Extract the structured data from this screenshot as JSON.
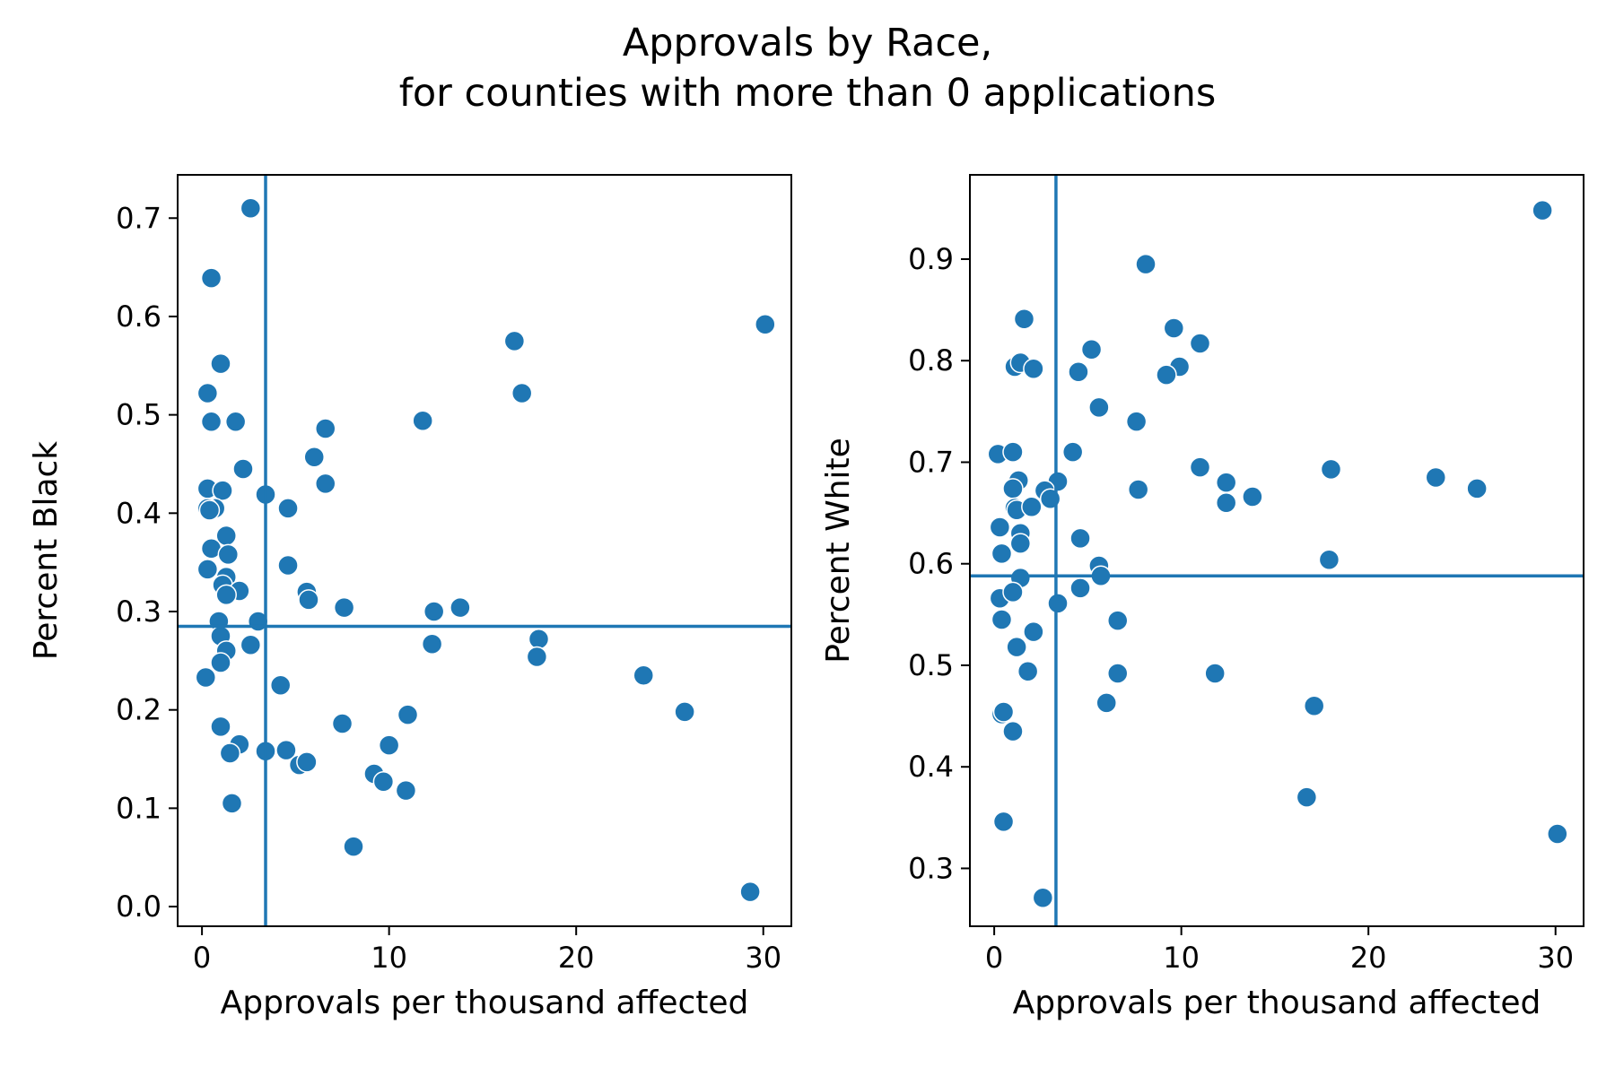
{
  "title_line1": "Approvals by Race,",
  "title_line2": "for counties with more than 0 applications",
  "colors": {
    "point": "#1f77b4",
    "refline": "#1f77b4",
    "frame": "#000000"
  },
  "chart_data": [
    {
      "type": "scatter",
      "xlabel": "Approvals per thousand affected",
      "ylabel": "Percent Black",
      "xlim": [
        -1.3,
        31.5
      ],
      "ylim": [
        -0.02,
        0.744
      ],
      "xticks": [
        0,
        10,
        20,
        30
      ],
      "yticks": [
        0.0,
        0.1,
        0.2,
        0.3,
        0.4,
        0.5,
        0.6,
        0.7
      ],
      "xtick_labels": [
        "0",
        "10",
        "20",
        "30"
      ],
      "ytick_labels": [
        "0.0",
        "0.1",
        "0.2",
        "0.3",
        "0.4",
        "0.5",
        "0.6",
        "0.7"
      ],
      "vline_x": 3.4,
      "hline_y": 0.285,
      "points": [
        [
          2.6,
          0.71
        ],
        [
          0.5,
          0.639
        ],
        [
          1.0,
          0.552
        ],
        [
          0.3,
          0.522
        ],
        [
          0.5,
          0.493
        ],
        [
          1.8,
          0.493
        ],
        [
          2.2,
          0.445
        ],
        [
          0.3,
          0.425
        ],
        [
          1.1,
          0.423
        ],
        [
          3.4,
          0.419
        ],
        [
          0.7,
          0.405
        ],
        [
          0.3,
          0.405
        ],
        [
          0.4,
          0.403
        ],
        [
          4.6,
          0.405
        ],
        [
          1.3,
          0.377
        ],
        [
          0.5,
          0.364
        ],
        [
          1.4,
          0.358
        ],
        [
          4.6,
          0.347
        ],
        [
          0.3,
          0.343
        ],
        [
          1.3,
          0.335
        ],
        [
          1.1,
          0.327
        ],
        [
          2.0,
          0.321
        ],
        [
          1.3,
          0.317
        ],
        [
          0.9,
          0.29
        ],
        [
          3.0,
          0.29
        ],
        [
          1.0,
          0.275
        ],
        [
          1.3,
          0.26
        ],
        [
          2.6,
          0.266
        ],
        [
          1.0,
          0.248
        ],
        [
          0.2,
          0.233
        ],
        [
          4.2,
          0.225
        ],
        [
          1.0,
          0.183
        ],
        [
          2.0,
          0.165
        ],
        [
          1.5,
          0.156
        ],
        [
          3.4,
          0.158
        ],
        [
          4.5,
          0.159
        ],
        [
          5.2,
          0.144
        ],
        [
          5.6,
          0.147
        ],
        [
          1.6,
          0.105
        ],
        [
          5.6,
          0.32
        ],
        [
          5.7,
          0.312
        ],
        [
          6.0,
          0.457
        ],
        [
          6.6,
          0.486
        ],
        [
          6.6,
          0.43
        ],
        [
          7.6,
          0.304
        ],
        [
          7.5,
          0.186
        ],
        [
          8.1,
          0.061
        ],
        [
          9.2,
          0.135
        ],
        [
          9.7,
          0.127
        ],
        [
          10.0,
          0.164
        ],
        [
          10.9,
          0.118
        ],
        [
          11.0,
          0.195
        ],
        [
          11.8,
          0.494
        ],
        [
          12.4,
          0.3
        ],
        [
          12.3,
          0.267
        ],
        [
          13.8,
          0.304
        ],
        [
          16.7,
          0.575
        ],
        [
          17.1,
          0.522
        ],
        [
          18.0,
          0.272
        ],
        [
          17.9,
          0.254
        ],
        [
          23.6,
          0.235
        ],
        [
          25.8,
          0.198
        ],
        [
          29.3,
          0.015
        ],
        [
          30.1,
          0.592
        ]
      ]
    },
    {
      "type": "scatter",
      "xlabel": "Approvals per thousand affected",
      "ylabel": "Percent White",
      "xlim": [
        -1.3,
        31.5
      ],
      "ylim": [
        0.243,
        0.983
      ],
      "xticks": [
        0,
        10,
        20,
        30
      ],
      "yticks": [
        0.3,
        0.4,
        0.5,
        0.6,
        0.7,
        0.8,
        0.9
      ],
      "xtick_labels": [
        "0",
        "10",
        "20",
        "30"
      ],
      "ytick_labels": [
        "0.3",
        "0.4",
        "0.5",
        "0.6",
        "0.7",
        "0.8",
        "0.9"
      ],
      "vline_x": 3.3,
      "hline_y": 0.588,
      "points": [
        [
          29.3,
          0.948
        ],
        [
          8.1,
          0.895
        ],
        [
          1.6,
          0.841
        ],
        [
          9.6,
          0.832
        ],
        [
          11.0,
          0.817
        ],
        [
          5.2,
          0.811
        ],
        [
          1.1,
          0.794
        ],
        [
          1.4,
          0.798
        ],
        [
          2.1,
          0.792
        ],
        [
          4.5,
          0.789
        ],
        [
          9.9,
          0.794
        ],
        [
          9.2,
          0.786
        ],
        [
          5.6,
          0.754
        ],
        [
          7.6,
          0.74
        ],
        [
          0.2,
          0.708
        ],
        [
          1.0,
          0.71
        ],
        [
          4.2,
          0.71
        ],
        [
          11.0,
          0.695
        ],
        [
          18.0,
          0.693
        ],
        [
          23.6,
          0.685
        ],
        [
          12.4,
          0.68
        ],
        [
          3.4,
          0.681
        ],
        [
          1.3,
          0.682
        ],
        [
          1.0,
          0.674
        ],
        [
          2.7,
          0.672
        ],
        [
          25.8,
          0.674
        ],
        [
          7.7,
          0.673
        ],
        [
          13.8,
          0.666
        ],
        [
          3.0,
          0.664
        ],
        [
          12.4,
          0.66
        ],
        [
          1.1,
          0.655
        ],
        [
          1.2,
          0.653
        ],
        [
          2.0,
          0.656
        ],
        [
          0.3,
          0.636
        ],
        [
          1.4,
          0.63
        ],
        [
          4.6,
          0.625
        ],
        [
          1.4,
          0.62
        ],
        [
          0.4,
          0.61
        ],
        [
          17.9,
          0.604
        ],
        [
          5.6,
          0.598
        ],
        [
          5.7,
          0.588
        ],
        [
          1.4,
          0.586
        ],
        [
          0.3,
          0.566
        ],
        [
          1.0,
          0.572
        ],
        [
          4.6,
          0.576
        ],
        [
          3.4,
          0.561
        ],
        [
          0.4,
          0.545
        ],
        [
          6.6,
          0.544
        ],
        [
          2.1,
          0.533
        ],
        [
          1.2,
          0.518
        ],
        [
          1.8,
          0.494
        ],
        [
          6.6,
          0.492
        ],
        [
          11.8,
          0.492
        ],
        [
          6.0,
          0.463
        ],
        [
          17.1,
          0.46
        ],
        [
          0.4,
          0.452
        ],
        [
          0.5,
          0.454
        ],
        [
          1.0,
          0.435
        ],
        [
          16.7,
          0.37
        ],
        [
          0.5,
          0.346
        ],
        [
          30.1,
          0.334
        ],
        [
          2.6,
          0.271
        ]
      ]
    }
  ]
}
